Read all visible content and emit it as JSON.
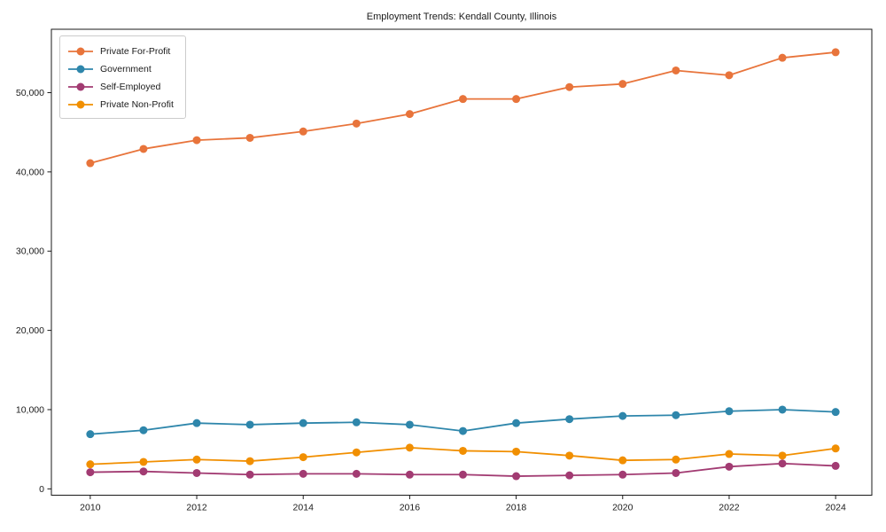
{
  "figure": {
    "background": "#ffffff",
    "axis_color": "#1a1a1a"
  },
  "chart_data": {
    "type": "line",
    "title": "Employment Trends: Kendall County, Illinois",
    "xlabel": "",
    "ylabel": "",
    "grid": false,
    "legend_position": "upper-left",
    "x": [
      2010,
      2011,
      2012,
      2013,
      2014,
      2015,
      2016,
      2017,
      2018,
      2019,
      2020,
      2021,
      2022,
      2023,
      2024
    ],
    "xlim": [
      2009.27,
      2024.68
    ],
    "ylim": [
      -800,
      58000
    ],
    "x_ticks": [
      2010,
      2012,
      2014,
      2016,
      2018,
      2020,
      2022,
      2024
    ],
    "x_tick_labels": [
      "2010",
      "2012",
      "2014",
      "2016",
      "2018",
      "2020",
      "2022",
      "2024"
    ],
    "y_ticks": [
      0,
      10000,
      20000,
      30000,
      40000,
      50000
    ],
    "y_tick_labels": [
      "0",
      "10,000",
      "20,000",
      "30,000",
      "40,000",
      "50,000"
    ],
    "series": [
      {
        "name": "Private For-Profit",
        "color": "#E8743B",
        "values": [
          41100,
          42900,
          44000,
          44300,
          45100,
          46100,
          47300,
          49200,
          49200,
          50700,
          51100,
          52800,
          52200,
          54400,
          55100
        ]
      },
      {
        "name": "Government",
        "color": "#2E86AB",
        "values": [
          6900,
          7400,
          8300,
          8100,
          8300,
          8400,
          8100,
          7300,
          8300,
          8800,
          9200,
          9300,
          9800,
          10000,
          9700
        ]
      },
      {
        "name": "Self-Employed",
        "color": "#A23B72",
        "values": [
          2100,
          2200,
          2000,
          1800,
          1900,
          1900,
          1800,
          1800,
          1600,
          1700,
          1800,
          2000,
          2800,
          3200,
          2900
        ]
      },
      {
        "name": "Private Non-Profit",
        "color": "#F18F01",
        "values": [
          3100,
          3400,
          3700,
          3500,
          4000,
          4600,
          5200,
          4800,
          4700,
          4200,
          3600,
          3700,
          4400,
          4200,
          5100
        ]
      }
    ]
  }
}
